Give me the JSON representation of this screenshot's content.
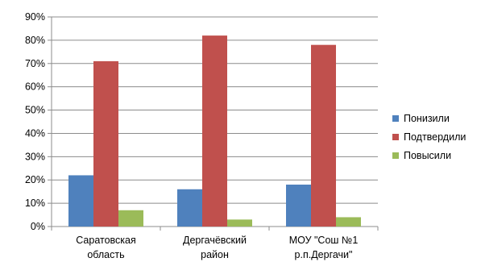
{
  "chart_data": {
    "type": "bar",
    "categories": [
      [
        "Саратовская",
        "область"
      ],
      [
        "Дергачёвский",
        "район"
      ],
      [
        "МОУ \"Сош №1",
        "р.п.Дергачи\""
      ]
    ],
    "series": [
      {
        "name": "Понизили",
        "values": [
          22,
          16,
          18
        ],
        "color": "#4F81BD"
      },
      {
        "name": "Подтвердили",
        "values": [
          71,
          82,
          78
        ],
        "color": "#C0504D"
      },
      {
        "name": "Повысили",
        "values": [
          7,
          3,
          4
        ],
        "color": "#9BBB59"
      }
    ],
    "y_ticks": [
      "0%",
      "10%",
      "20%",
      "30%",
      "40%",
      "50%",
      "60%",
      "70%",
      "80%",
      "90%"
    ],
    "ylim": [
      0,
      90
    ],
    "grid": true,
    "legend_position": "right"
  }
}
